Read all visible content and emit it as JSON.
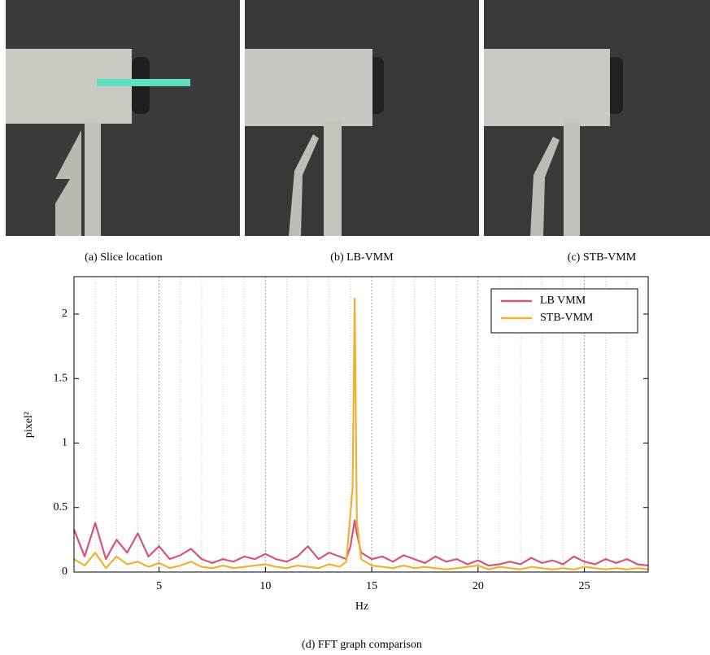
{
  "captions": [
    "(a) Slice location",
    "(b) LB-VMM",
    "(c) STB-VMM"
  ],
  "chart_data": {
    "type": "line",
    "caption": "(d) FFT graph comparison",
    "xlabel": "Hz",
    "ylabel": "pixel²",
    "xlim": [
      1,
      28
    ],
    "ylim": [
      0,
      2.29
    ],
    "xticks": [
      5,
      10,
      15,
      20,
      25
    ],
    "yticks": [
      0,
      0.5,
      1,
      1.5,
      2
    ],
    "x_minor_ticks": [
      2,
      3,
      4,
      6,
      7,
      8,
      9,
      11,
      12,
      13,
      14,
      16,
      17,
      18,
      19,
      21,
      22,
      23,
      24,
      26,
      27
    ],
    "grid": true,
    "legend": "upper right",
    "x": [
      1,
      1.5,
      2,
      2.5,
      3,
      3.5,
      4,
      4.5,
      5,
      5.5,
      6,
      6.5,
      7,
      7.5,
      8,
      8.5,
      9,
      9.5,
      10,
      10.5,
      11,
      11.5,
      12,
      12.5,
      13,
      13.5,
      13.8,
      14,
      14.1,
      14.2,
      14.3,
      14.5,
      15,
      15.5,
      16,
      16.5,
      17,
      17.5,
      18,
      18.5,
      19,
      19.5,
      20,
      20.5,
      21,
      21.5,
      22,
      22.5,
      23,
      23.5,
      24,
      24.5,
      25,
      25.5,
      26,
      26.5,
      27,
      27.5,
      28
    ],
    "series": [
      {
        "name": "LB VMM",
        "color": "#d6537a",
        "values": [
          0.33,
          0.12,
          0.38,
          0.1,
          0.25,
          0.15,
          0.3,
          0.12,
          0.2,
          0.1,
          0.13,
          0.18,
          0.1,
          0.07,
          0.1,
          0.08,
          0.12,
          0.1,
          0.14,
          0.1,
          0.08,
          0.12,
          0.2,
          0.1,
          0.15,
          0.12,
          0.1,
          0.2,
          0.3,
          0.4,
          0.3,
          0.15,
          0.1,
          0.12,
          0.08,
          0.13,
          0.1,
          0.07,
          0.12,
          0.08,
          0.1,
          0.06,
          0.09,
          0.05,
          0.06,
          0.08,
          0.06,
          0.11,
          0.07,
          0.09,
          0.06,
          0.12,
          0.08,
          0.06,
          0.1,
          0.07,
          0.1,
          0.06,
          0.05
        ]
      },
      {
        "name": "STB-VMM",
        "color": "#f0b030",
        "values": [
          0.1,
          0.05,
          0.15,
          0.03,
          0.12,
          0.06,
          0.08,
          0.04,
          0.07,
          0.03,
          0.05,
          0.08,
          0.04,
          0.03,
          0.05,
          0.03,
          0.04,
          0.05,
          0.06,
          0.04,
          0.03,
          0.05,
          0.04,
          0.03,
          0.06,
          0.04,
          0.08,
          0.45,
          0.65,
          2.12,
          0.4,
          0.1,
          0.05,
          0.04,
          0.03,
          0.05,
          0.03,
          0.04,
          0.03,
          0.02,
          0.03,
          0.04,
          0.05,
          0.02,
          0.04,
          0.03,
          0.02,
          0.04,
          0.03,
          0.02,
          0.03,
          0.02,
          0.04,
          0.03,
          0.02,
          0.03,
          0.02,
          0.03,
          0.02
        ]
      }
    ]
  }
}
